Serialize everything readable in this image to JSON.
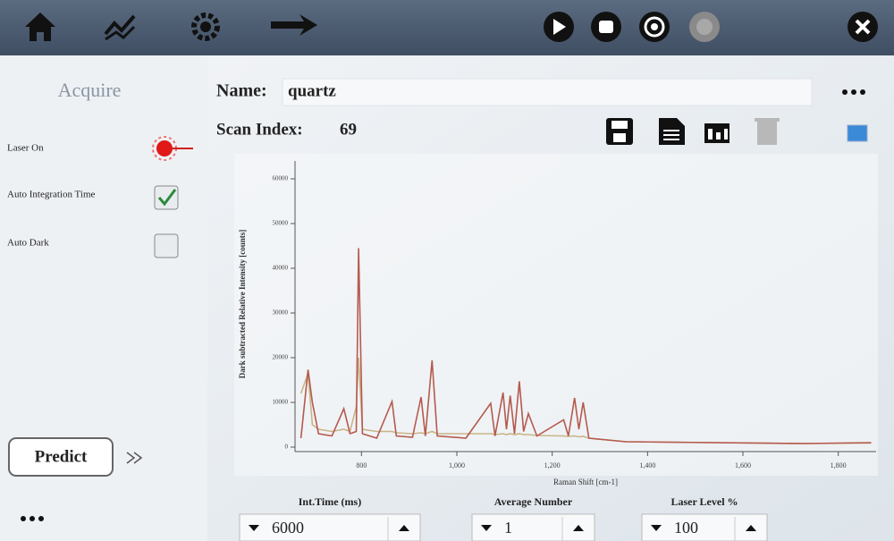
{
  "panel": {
    "title": "Acquire",
    "laser_on": "Laser On",
    "auto_integration": "Auto Integration Time",
    "auto_dark": "Auto Dark",
    "predict": "Predict"
  },
  "header": {
    "name_label": "Name:",
    "name": "quartz",
    "scan_label": "Scan Index:",
    "scan_index": 69
  },
  "controls": [
    {
      "label": "Int.Time (ms)",
      "value": 6000
    },
    {
      "label": "Average Number",
      "value": 1
    },
    {
      "label": "Laser Level %",
      "value": 100
    }
  ],
  "chart_data": {
    "type": "line",
    "ylabel": "Dark subtracted Relative Intensity [counts]",
    "xlabel": "Raman Shift [cm-1]",
    "x": [
      673,
      688,
      697,
      710,
      738,
      763,
      776,
      789,
      794,
      802,
      832,
      864,
      873,
      907,
      925,
      934,
      948,
      959,
      1019,
      1071,
      1080,
      1097,
      1104,
      1112,
      1121,
      1131,
      1140,
      1150,
      1168,
      1224,
      1234,
      1247,
      1256,
      1265,
      1277,
      1355,
      1542,
      1729,
      1869
    ],
    "series": [
      {
        "color": "#b55a4e",
        "values": [
          2000,
          17300,
          10000,
          3000,
          2500,
          8600,
          3000,
          3500,
          44500,
          3000,
          2000,
          10200,
          2500,
          2200,
          11200,
          2500,
          19400,
          2500,
          2000,
          9800,
          2500,
          12200,
          4000,
          11500,
          3000,
          14700,
          3500,
          7500,
          2500,
          6100,
          2500,
          11000,
          4000,
          10000,
          2000,
          1200,
          1000,
          800,
          1000
        ]
      },
      {
        "color": "#c9b487",
        "values": [
          12000,
          16500,
          5000,
          4000,
          3500,
          4000,
          3500,
          9000,
          20000,
          4000,
          3500,
          3500,
          3200,
          3000,
          3200,
          3000,
          3500,
          3000,
          3000,
          3000,
          2800,
          3000,
          2800,
          3000,
          2800,
          3000,
          2800,
          2800,
          2600,
          2500,
          2400,
          2500,
          2300,
          2400,
          2000,
          1200,
          1000,
          800,
          900
        ]
      }
    ],
    "xlim": [
      670,
      1870
    ],
    "ylim": [
      0,
      63000
    ],
    "xticks": [
      800,
      {
        "value": 1000,
        "label": "1,000"
      },
      {
        "value": 1200,
        "label": "1,200"
      },
      {
        "value": 1400,
        "label": "1,400"
      },
      {
        "value": 1600,
        "label": "1,600"
      },
      {
        "value": 1800,
        "label": "1,800"
      }
    ],
    "yticks": [
      0,
      10000,
      20000,
      30000,
      40000,
      50000,
      60000
    ]
  }
}
